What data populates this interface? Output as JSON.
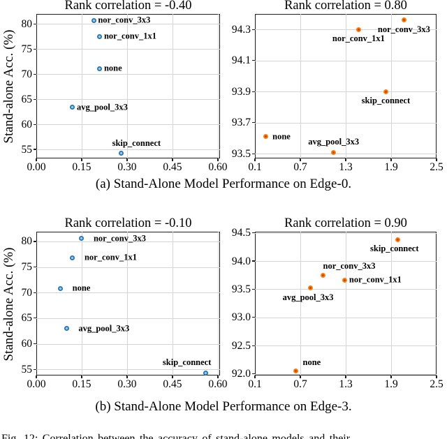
{
  "figure": {
    "ylabel": "Stand-alone Acc. (%)",
    "caption_a": "(a) Stand-Alone Model Performance on Edge-0.",
    "caption_b": "(b) Stand-Alone Model Performance on Edge-3.",
    "clipped_caption": "Fig. 12:  Correlation between the accuracy of stand-alone models and their",
    "colors": {
      "blue": "#1f77b4",
      "blue_center": "#9ec9e8",
      "orange": "#ff7f0e",
      "orange_center": "#c44e00",
      "grid": "#d4d4d4",
      "spine": "#1c1c1c"
    }
  },
  "chart_data": [
    {
      "id": "edge0-standalone",
      "type": "scatter",
      "title": "Rank correlation = -0.40",
      "series_color": "blue",
      "grid": true,
      "legend": "none",
      "xlim": [
        0.0,
        0.607
      ],
      "ylim": [
        53.2,
        82.0
      ],
      "xticks": {
        "values": [
          0.0,
          0.15,
          0.3,
          0.45,
          0.6
        ],
        "labels": [
          "0.00",
          "0.15",
          "0.30",
          "0.45",
          "0.60"
        ]
      },
      "yticks": {
        "values": [
          55,
          60,
          65,
          70,
          75,
          80
        ],
        "labels": [
          "55",
          "60",
          "65",
          "70",
          "75",
          "80"
        ]
      },
      "points": [
        {
          "label": "nor_conv_3x3",
          "x": 0.19,
          "y": 80.7,
          "anchor": "right",
          "dx": 0
        },
        {
          "label": "nor_conv_1x1",
          "x": 0.21,
          "y": 77.5,
          "anchor": "right",
          "dx": 0
        },
        {
          "label": "none",
          "x": 0.21,
          "y": 71.1,
          "anchor": "right",
          "dx": 0
        },
        {
          "label": "avg_pool_3x3",
          "x": 0.12,
          "y": 63.4,
          "anchor": "right",
          "dx": 0
        },
        {
          "label": "skip_connect",
          "x": 0.28,
          "y": 54.2,
          "anchor": "above",
          "dx": 22
        }
      ]
    },
    {
      "id": "edge0-predicted",
      "type": "scatter",
      "title": "Rank correlation = 0.80",
      "series_color": "orange",
      "grid": true,
      "legend": "none",
      "xlim": [
        0.1,
        2.5
      ],
      "ylim": [
        93.47,
        94.4
      ],
      "xticks": {
        "values": [
          0.1,
          0.7,
          1.3,
          1.9,
          2.5
        ],
        "labels": [
          "0.1",
          "0.7",
          "1.3",
          "1.9",
          "2.5"
        ]
      },
      "yticks": {
        "values": [
          93.5,
          93.7,
          93.9,
          94.1,
          94.3
        ],
        "labels": [
          "93.5",
          "93.7",
          "93.9",
          "94.1",
          "94.3"
        ]
      },
      "points": [
        {
          "label": "nor_conv_3x3",
          "x": 2.07,
          "y": 94.36,
          "anchor": "below",
          "dx": 0
        },
        {
          "label": "nor_conv_1x1",
          "x": 1.47,
          "y": 94.3,
          "anchor": "below",
          "dx": 0
        },
        {
          "label": "skip_connect",
          "x": 1.83,
          "y": 93.9,
          "anchor": "below",
          "dx": 0
        },
        {
          "label": "none",
          "x": 0.24,
          "y": 93.61,
          "anchor": "right",
          "dx": 4
        },
        {
          "label": "avg_pool_3x3",
          "x": 1.14,
          "y": 93.51,
          "anchor": "above",
          "dx": 0
        }
      ]
    },
    {
      "id": "edge3-standalone",
      "type": "scatter",
      "title": "Rank correlation = -0.10",
      "series_color": "blue",
      "grid": true,
      "legend": "none",
      "xlim": [
        0.0,
        0.607
      ],
      "ylim": [
        53.8,
        81.9
      ],
      "xticks": {
        "values": [
          0.0,
          0.15,
          0.3,
          0.45,
          0.6
        ],
        "labels": [
          "0.00",
          "0.15",
          "0.30",
          "0.45",
          "0.60"
        ]
      },
      "yticks": {
        "values": [
          55,
          60,
          65,
          70,
          75,
          80
        ],
        "labels": [
          "55",
          "60",
          "65",
          "70",
          "75",
          "80"
        ]
      },
      "points": [
        {
          "label": "nor_conv_3x3",
          "x": 0.15,
          "y": 80.6,
          "anchor": "right",
          "dx": 11
        },
        {
          "label": "nor_conv_1x1",
          "x": 0.12,
          "y": 76.8,
          "anchor": "right",
          "dx": 11
        },
        {
          "label": "none",
          "x": 0.08,
          "y": 70.8,
          "anchor": "right",
          "dx": 11
        },
        {
          "label": "avg_pool_3x3",
          "x": 0.1,
          "y": 63.0,
          "anchor": "right",
          "dx": 11
        },
        {
          "label": "skip_connect",
          "x": 0.56,
          "y": 54.3,
          "anchor": "above",
          "dx": -27
        }
      ]
    },
    {
      "id": "edge3-predicted",
      "type": "scatter",
      "title": "Rank correlation = 0.90",
      "series_color": "orange",
      "grid": true,
      "legend": "none",
      "xlim": [
        0.1,
        2.5
      ],
      "ylim": [
        91.97,
        94.52
      ],
      "xticks": {
        "values": [
          0.1,
          0.7,
          1.3,
          1.9,
          2.5
        ],
        "labels": [
          "0.1",
          "0.7",
          "1.3",
          "1.9",
          "2.5"
        ]
      },
      "yticks": {
        "values": [
          92.0,
          92.5,
          93.0,
          93.5,
          94.0,
          94.5
        ],
        "labels": [
          "92.0",
          "92.5",
          "93.0",
          "93.5",
          "94.0",
          "94.5"
        ]
      },
      "points": [
        {
          "label": "skip_connect",
          "x": 1.99,
          "y": 94.38,
          "anchor": "below",
          "dx": -5
        },
        {
          "label": "nor_conv_3x3",
          "x": 1.0,
          "y": 93.75,
          "anchor": "above-right",
          "dx": 0
        },
        {
          "label": "nor_conv_1x1",
          "x": 1.29,
          "y": 93.66,
          "anchor": "right",
          "dx": 0
        },
        {
          "label": "avg_pool_3x3",
          "x": 0.83,
          "y": 93.52,
          "anchor": "below",
          "dx": -3
        },
        {
          "label": "none",
          "x": 0.64,
          "y": 92.05,
          "anchor": "above-right",
          "dx": 10
        }
      ]
    }
  ]
}
